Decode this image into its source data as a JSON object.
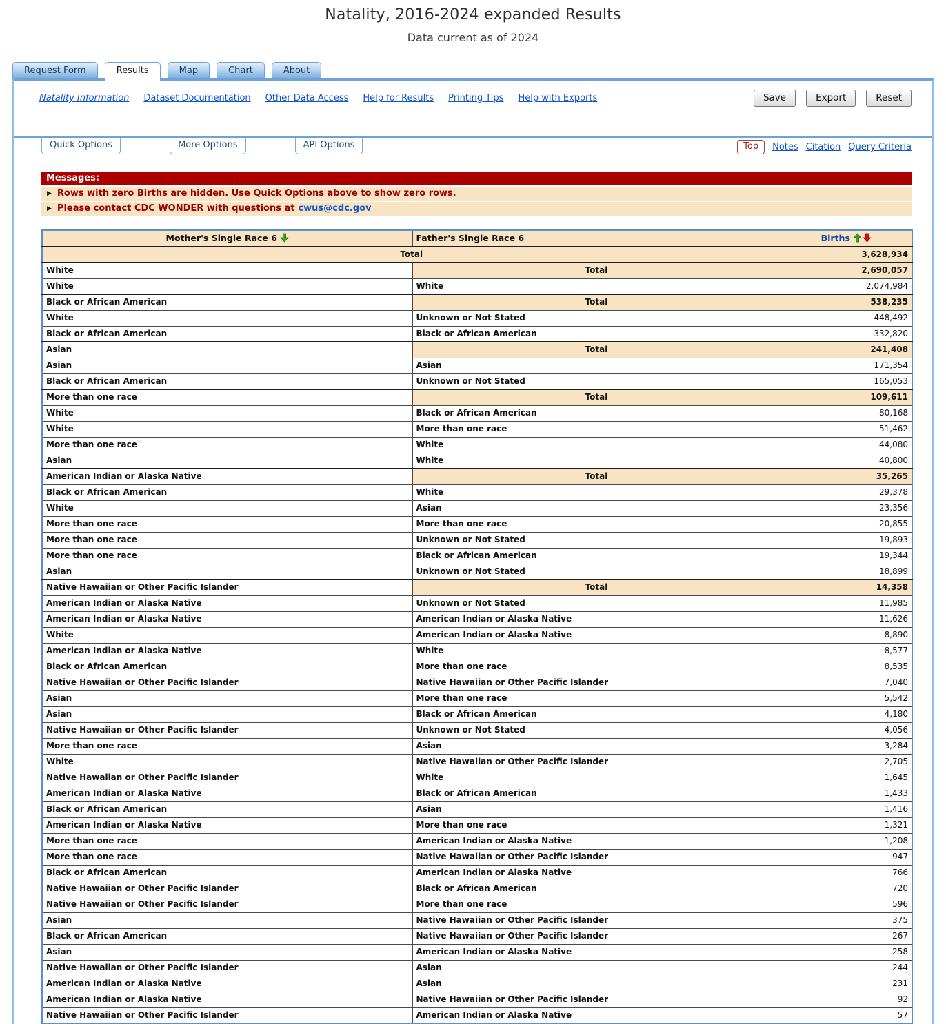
{
  "page": {
    "title": "Natality, 2016-2024 expanded Results",
    "subtitle": "Data current as of 2024"
  },
  "tabs": [
    {
      "label": "Request Form",
      "active": false
    },
    {
      "label": "Results",
      "active": true
    },
    {
      "label": "Map",
      "active": false
    },
    {
      "label": "Chart",
      "active": false
    },
    {
      "label": "About",
      "active": false
    }
  ],
  "toolbar": {
    "links": [
      {
        "label": "Natality Information",
        "italic": true
      },
      {
        "label": "Dataset Documentation",
        "italic": false
      },
      {
        "label": "Other Data Access",
        "italic": false
      },
      {
        "label": "Help for Results",
        "italic": false
      },
      {
        "label": "Printing Tips",
        "italic": false
      },
      {
        "label": "Help with Exports",
        "italic": false
      }
    ],
    "buttons": [
      "Save",
      "Export",
      "Reset"
    ]
  },
  "options_bar": {
    "buttons": [
      "Quick Options",
      "More Options",
      "API Options"
    ],
    "top_button": "Top",
    "links": [
      "Notes",
      "Citation",
      "Query Criteria"
    ]
  },
  "messages": {
    "header": "Messages:",
    "items": [
      {
        "text": "Rows with zero Births are hidden. Use Quick Options above to show zero rows.",
        "link": ""
      },
      {
        "text": "Please contact CDC WONDER with questions at",
        "link": "cwus@cdc.gov"
      }
    ]
  },
  "table": {
    "columns": [
      "Mother's Single Race 6",
      "Father's Single Race 6",
      "Births"
    ],
    "sort_icons": [
      "mother-sort-descending-green-arrow",
      "births-sort-ascending-green-arrow",
      "births-sort-descending-red-arrow"
    ],
    "total_label": "Total",
    "rows": [
      {
        "type": "grand",
        "births": "3,628,934"
      },
      {
        "type": "total",
        "mother": "White",
        "births": "2,690,057"
      },
      {
        "type": "data",
        "mother": "White",
        "father": "White",
        "births": "2,074,984"
      },
      {
        "type": "total",
        "mother": "Black or African American",
        "births": "538,235"
      },
      {
        "type": "data",
        "mother": "White",
        "father": "Unknown or Not Stated",
        "births": "448,492"
      },
      {
        "type": "data",
        "mother": "Black or African American",
        "father": "Black or African American",
        "births": "332,820"
      },
      {
        "type": "total",
        "mother": "Asian",
        "births": "241,408"
      },
      {
        "type": "data",
        "mother": "Asian",
        "father": "Asian",
        "births": "171,354"
      },
      {
        "type": "data",
        "mother": "Black or African American",
        "father": "Unknown or Not Stated",
        "births": "165,053"
      },
      {
        "type": "total",
        "mother": "More than one race",
        "births": "109,611"
      },
      {
        "type": "data",
        "mother": "White",
        "father": "Black or African American",
        "births": "80,168"
      },
      {
        "type": "data",
        "mother": "White",
        "father": "More than one race",
        "births": "51,462"
      },
      {
        "type": "data",
        "mother": "More than one race",
        "father": "White",
        "births": "44,080"
      },
      {
        "type": "data",
        "mother": "Asian",
        "father": "White",
        "births": "40,800"
      },
      {
        "type": "total",
        "mother": "American Indian or Alaska Native",
        "births": "35,265"
      },
      {
        "type": "data",
        "mother": "Black or African American",
        "father": "White",
        "births": "29,378"
      },
      {
        "type": "data",
        "mother": "White",
        "father": "Asian",
        "births": "23,356"
      },
      {
        "type": "data",
        "mother": "More than one race",
        "father": "More than one race",
        "births": "20,855"
      },
      {
        "type": "data",
        "mother": "More than one race",
        "father": "Unknown or Not Stated",
        "births": "19,893"
      },
      {
        "type": "data",
        "mother": "More than one race",
        "father": "Black or African American",
        "births": "19,344"
      },
      {
        "type": "data",
        "mother": "Asian",
        "father": "Unknown or Not Stated",
        "births": "18,899"
      },
      {
        "type": "total",
        "mother": "Native Hawaiian or Other Pacific Islander",
        "births": "14,358"
      },
      {
        "type": "data",
        "mother": "American Indian or Alaska Native",
        "father": "Unknown or Not Stated",
        "births": "11,985"
      },
      {
        "type": "data",
        "mother": "American Indian or Alaska Native",
        "father": "American Indian or Alaska Native",
        "births": "11,626"
      },
      {
        "type": "data",
        "mother": "White",
        "father": "American Indian or Alaska Native",
        "births": "8,890"
      },
      {
        "type": "data",
        "mother": "American Indian or Alaska Native",
        "father": "White",
        "births": "8,577"
      },
      {
        "type": "data",
        "mother": "Black or African American",
        "father": "More than one race",
        "births": "8,535"
      },
      {
        "type": "data",
        "mother": "Native Hawaiian or Other Pacific Islander",
        "father": "Native Hawaiian or Other Pacific Islander",
        "births": "7,040"
      },
      {
        "type": "data",
        "mother": "Asian",
        "father": "More than one race",
        "births": "5,542"
      },
      {
        "type": "data",
        "mother": "Asian",
        "father": "Black or African American",
        "births": "4,180"
      },
      {
        "type": "data",
        "mother": "Native Hawaiian or Other Pacific Islander",
        "father": "Unknown or Not Stated",
        "births": "4,056"
      },
      {
        "type": "data",
        "mother": "More than one race",
        "father": "Asian",
        "births": "3,284"
      },
      {
        "type": "data",
        "mother": "White",
        "father": "Native Hawaiian or Other Pacific Islander",
        "births": "2,705"
      },
      {
        "type": "data",
        "mother": "Native Hawaiian or Other Pacific Islander",
        "father": "White",
        "births": "1,645"
      },
      {
        "type": "data",
        "mother": "American Indian or Alaska Native",
        "father": "Black or African American",
        "births": "1,433"
      },
      {
        "type": "data",
        "mother": "Black or African American",
        "father": "Asian",
        "births": "1,416"
      },
      {
        "type": "data",
        "mother": "American Indian or Alaska Native",
        "father": "More than one race",
        "births": "1,321"
      },
      {
        "type": "data",
        "mother": "More than one race",
        "father": "American Indian or Alaska Native",
        "births": "1,208"
      },
      {
        "type": "data",
        "mother": "More than one race",
        "father": "Native Hawaiian or Other Pacific Islander",
        "births": "947"
      },
      {
        "type": "data",
        "mother": "Black or African American",
        "father": "American Indian or Alaska Native",
        "births": "766"
      },
      {
        "type": "data",
        "mother": "Native Hawaiian or Other Pacific Islander",
        "father": "Black or African American",
        "births": "720"
      },
      {
        "type": "data",
        "mother": "Native Hawaiian or Other Pacific Islander",
        "father": "More than one race",
        "births": "596"
      },
      {
        "type": "data",
        "mother": "Asian",
        "father": "Native Hawaiian or Other Pacific Islander",
        "births": "375"
      },
      {
        "type": "data",
        "mother": "Black or African American",
        "father": "Native Hawaiian or Other Pacific Islander",
        "births": "267"
      },
      {
        "type": "data",
        "mother": "Asian",
        "father": "American Indian or Alaska Native",
        "births": "258"
      },
      {
        "type": "data",
        "mother": "Native Hawaiian or Other Pacific Islander",
        "father": "Asian",
        "births": "244"
      },
      {
        "type": "data",
        "mother": "American Indian or Alaska Native",
        "father": "Asian",
        "births": "231"
      },
      {
        "type": "data",
        "mother": "American Indian or Alaska Native",
        "father": "Native Hawaiian or Other Pacific Islander",
        "births": "92"
      },
      {
        "type": "data",
        "mother": "Native Hawaiian or Other Pacific Islander",
        "father": "American Indian or Alaska Native",
        "births": "57"
      }
    ]
  },
  "colors": {
    "accent_blue": "#6FA3D8",
    "frame_blue": "#93BCE4",
    "table_border_blue": "#5A8FCB",
    "tan_highlight": "#F8E4C3",
    "message_red": "#AA0000",
    "message_text_red": "#990000",
    "link_blue": "#1155CC",
    "sort_green": "#3BA226",
    "sort_red": "#D01212"
  }
}
